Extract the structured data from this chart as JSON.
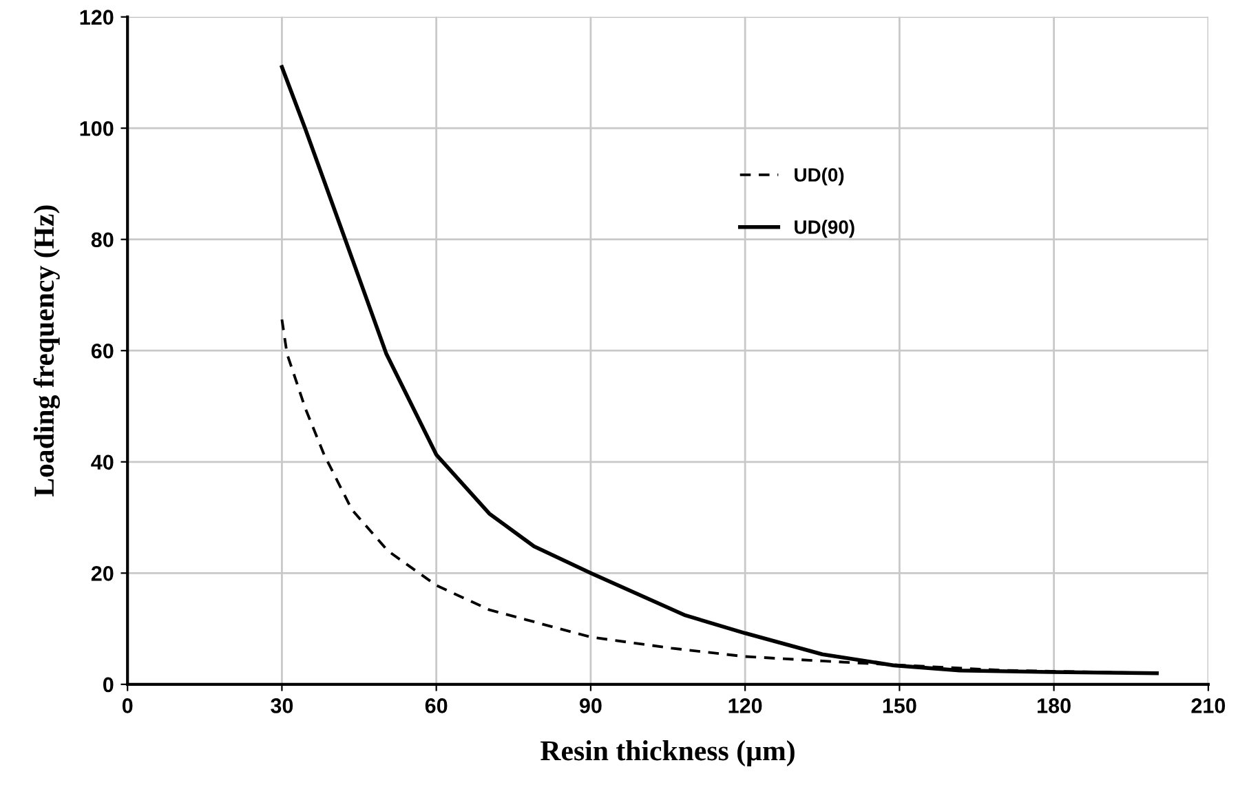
{
  "chart_data": {
    "type": "line",
    "xlabel": "Resin thickness (µm)",
    "ylabel": "Loading frequency (Hz)",
    "xlim": [
      0,
      210
    ],
    "xticks": [
      0,
      30,
      60,
      90,
      120,
      150,
      180,
      210
    ],
    "ylim": [
      0,
      120
    ],
    "yticks": [
      0,
      20,
      40,
      60,
      80,
      100,
      120
    ],
    "grid": true,
    "legend": "top",
    "marker": "none",
    "series": [
      {
        "name": "UD(0)",
        "color": "#000000",
        "line_style": "dashed",
        "x": [
          30,
          31,
          34.6,
          38.2,
          43.6,
          50.6,
          60,
          70.3,
          90,
          105.7,
          120,
          135,
          149,
          170.5,
          200
        ],
        "values": [
          65.6,
          59.4,
          49.5,
          41.3,
          31.4,
          24,
          17.8,
          13.4,
          8.5,
          6.5,
          5,
          4.2,
          3.5,
          2.5,
          2
        ]
      },
      {
        "name": "UD(90)",
        "color": "#000000",
        "line_style": "solid",
        "x": [
          30,
          34.5,
          42.3,
          50.3,
          60,
          70.3,
          79,
          90,
          108.4,
          120,
          135,
          149,
          161.7,
          179.6,
          200
        ],
        "values": [
          111,
          100,
          80,
          59.4,
          41.3,
          30.7,
          24.8,
          20,
          12.4,
          9.2,
          5.4,
          3.4,
          2.5,
          2.2,
          2
        ]
      }
    ]
  }
}
